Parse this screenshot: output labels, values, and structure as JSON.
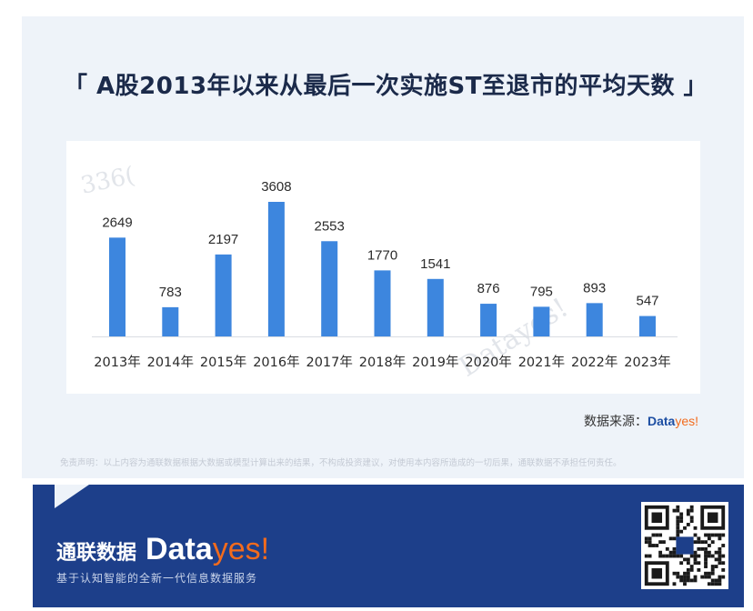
{
  "title": "「 A股2013年以来从最后一次实施ST至退市的平均天数 」",
  "source": {
    "label": "数据来源：",
    "brand_a": "Data",
    "brand_b": "yes!"
  },
  "disclaimer": "免责声明：以上内容为通联数据根据大数据或模型计算出来的结果，不构成投资建议，对使用本内容所造成的一切后果，通联数据不承担任何责任。",
  "footer": {
    "brand_cn": "通联数据",
    "brand_data": "Data",
    "brand_yes": "yes!",
    "tagline": "基于认知智能的全新一代信息数据服务"
  },
  "watermarks": [
    "336(",
    "Datayes!"
  ],
  "colors": {
    "bar": "#3d86de",
    "label": "#2b2b2b",
    "footer": "#1d3f8a",
    "accent": "#f26b1d"
  },
  "chart_data": {
    "type": "bar",
    "categories": [
      "2013年",
      "2014年",
      "2015年",
      "2016年",
      "2017年",
      "2018年",
      "2019年",
      "2020年",
      "2021年",
      "2022年",
      "2023年"
    ],
    "values": [
      2649,
      783,
      2197,
      3608,
      2553,
      1770,
      1541,
      876,
      795,
      893,
      547
    ],
    "title": "「 A股2013年以来从最后一次实施ST至退市的平均天数 」",
    "ylim": [
      0,
      3608
    ],
    "grid": false,
    "legend": "none"
  }
}
